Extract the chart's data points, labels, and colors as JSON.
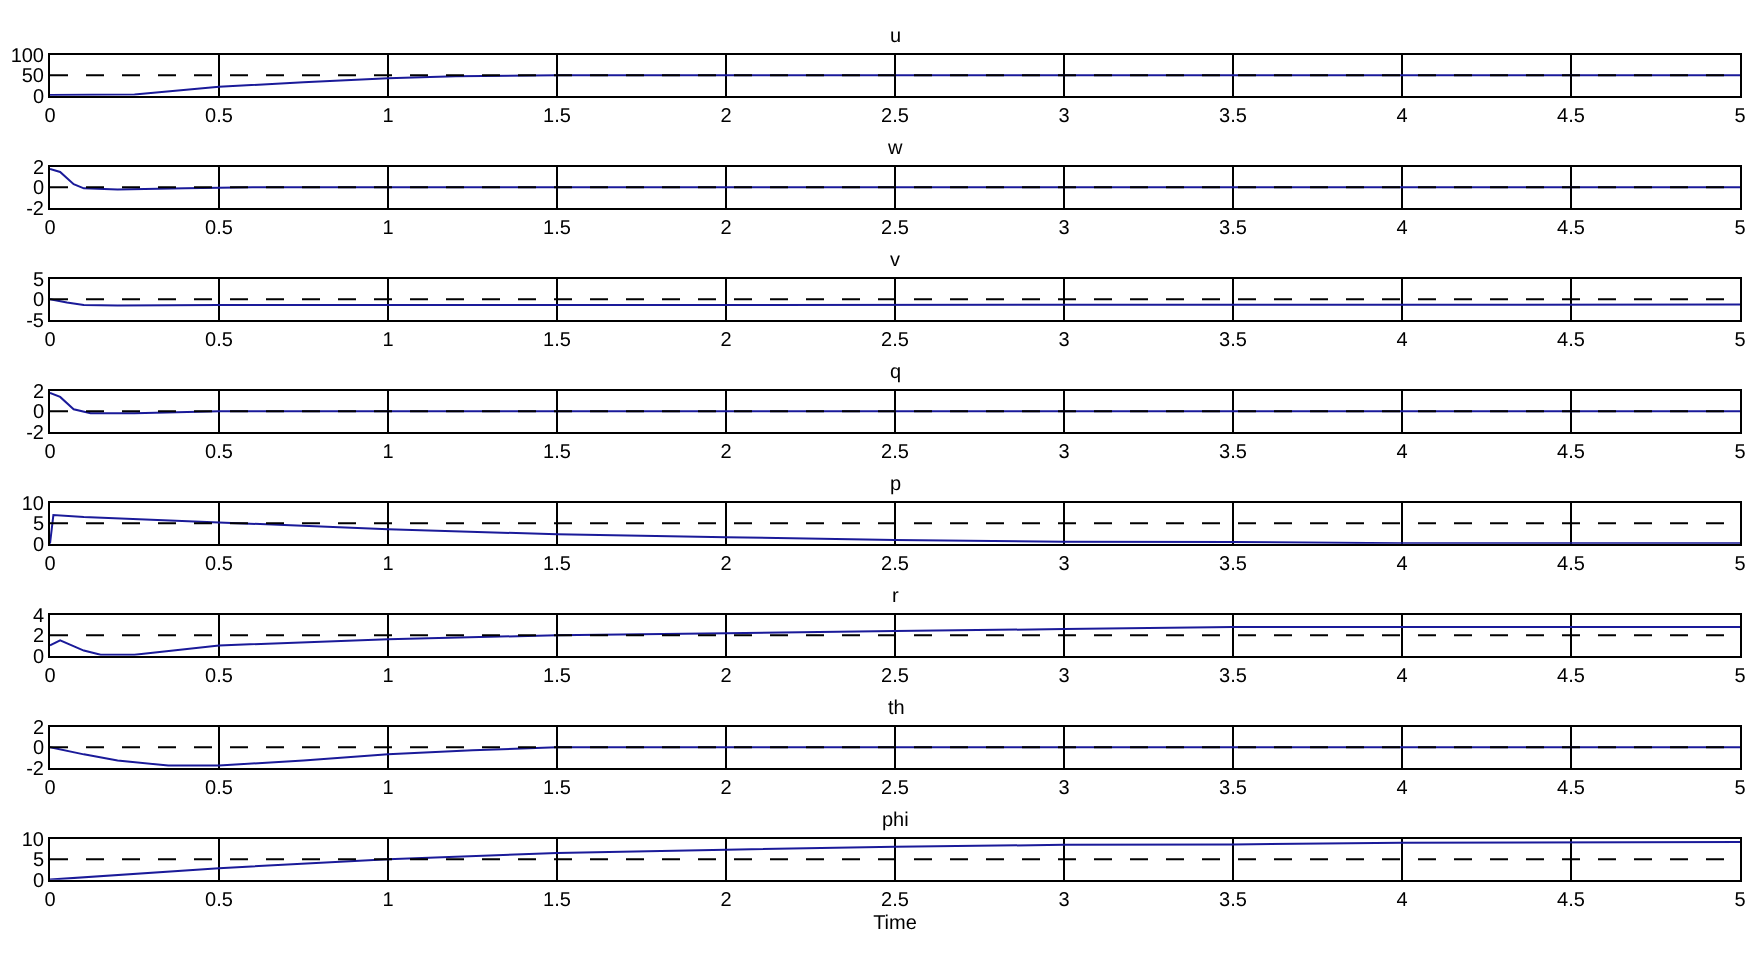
{
  "chart_data": [
    {
      "type": "line",
      "title": "u",
      "x": [
        0,
        0.25,
        0.5,
        0.75,
        1,
        1.2,
        1.5,
        5
      ],
      "series": [
        {
          "color": "#1a1a99",
          "values": [
            2,
            3,
            22,
            33,
            43,
            48,
            50,
            50
          ]
        }
      ],
      "xlim": [
        0,
        5
      ],
      "xticks": [
        0,
        0.5,
        1,
        1.5,
        2,
        2.5,
        3,
        3.5,
        4,
        4.5,
        5
      ],
      "ylim": [
        0,
        100
      ],
      "yticks": [
        0,
        50,
        100
      ],
      "ref_lines": [
        {
          "axis": "y",
          "value": 50,
          "color": "#000000",
          "line_style": "dashed"
        }
      ],
      "grid": "x"
    },
    {
      "type": "line",
      "title": "w",
      "x": [
        0,
        0.03,
        0.07,
        0.1,
        0.2,
        0.4,
        0.6,
        1,
        5
      ],
      "series": [
        {
          "color": "#1a1a99",
          "values": [
            1.8,
            1.5,
            0.3,
            -0.1,
            -0.2,
            -0.1,
            0,
            0,
            0
          ]
        }
      ],
      "xlim": [
        0,
        5
      ],
      "xticks": [
        0,
        0.5,
        1,
        1.5,
        2,
        2.5,
        3,
        3.5,
        4,
        4.5,
        5
      ],
      "ylim": [
        -2,
        2
      ],
      "yticks": [
        -2,
        0,
        2
      ],
      "ref_lines": [
        {
          "axis": "y",
          "value": 0,
          "color": "#000000",
          "line_style": "dashed"
        }
      ],
      "grid": "x"
    },
    {
      "type": "line",
      "title": "v",
      "x": [
        0,
        0.05,
        0.1,
        0.2,
        0.5,
        5
      ],
      "series": [
        {
          "color": "#1a1a99",
          "values": [
            0,
            -0.8,
            -1.4,
            -1.5,
            -1.4,
            -1.3
          ]
        }
      ],
      "xlim": [
        0,
        5
      ],
      "xticks": [
        0,
        0.5,
        1,
        1.5,
        2,
        2.5,
        3,
        3.5,
        4,
        4.5,
        5
      ],
      "ylim": [
        -5,
        5
      ],
      "yticks": [
        -5,
        0,
        5
      ],
      "ref_lines": [
        {
          "axis": "y",
          "value": 0,
          "color": "#000000",
          "line_style": "dashed"
        }
      ],
      "grid": "x"
    },
    {
      "type": "line",
      "title": "q",
      "x": [
        0,
        0.03,
        0.07,
        0.12,
        0.25,
        0.5,
        1,
        5
      ],
      "series": [
        {
          "color": "#1a1a99",
          "values": [
            1.8,
            1.4,
            0.2,
            -0.2,
            -0.2,
            0,
            0,
            0
          ]
        }
      ],
      "xlim": [
        0,
        5
      ],
      "xticks": [
        0,
        0.5,
        1,
        1.5,
        2,
        2.5,
        3,
        3.5,
        4,
        4.5,
        5
      ],
      "ylim": [
        -2,
        2
      ],
      "yticks": [
        -2,
        0,
        2
      ],
      "ref_lines": [
        {
          "axis": "y",
          "value": 0,
          "color": "#000000",
          "line_style": "dashed"
        }
      ],
      "grid": "x"
    },
    {
      "type": "line",
      "title": "p",
      "x": [
        0,
        0.01,
        0.1,
        0.5,
        1,
        1.5,
        2,
        2.5,
        3,
        3.5,
        4,
        5
      ],
      "series": [
        {
          "color": "#1a1a99",
          "values": [
            0,
            7,
            6.5,
            5.2,
            3.5,
            2.3,
            1.6,
            0.9,
            0.5,
            0.4,
            0.1,
            0.1
          ]
        }
      ],
      "xlim": [
        0,
        5
      ],
      "xticks": [
        0,
        0.5,
        1,
        1.5,
        2,
        2.5,
        3,
        3.5,
        4,
        4.5,
        5
      ],
      "ylim": [
        0,
        10
      ],
      "yticks": [
        0,
        5,
        10
      ],
      "ref_lines": [
        {
          "axis": "y",
          "value": 5,
          "color": "#000000",
          "line_style": "dashed"
        }
      ],
      "grid": "x"
    },
    {
      "type": "line",
      "title": "r",
      "x": [
        0,
        0.03,
        0.1,
        0.15,
        0.25,
        0.5,
        1,
        1.5,
        2,
        2.5,
        3,
        3.5,
        5
      ],
      "series": [
        {
          "color": "#1a1a99",
          "values": [
            1.0,
            1.5,
            0.5,
            0.1,
            0.1,
            1.0,
            1.6,
            2.0,
            2.2,
            2.4,
            2.6,
            2.8,
            2.8
          ]
        }
      ],
      "xlim": [
        0,
        5
      ],
      "xticks": [
        0,
        0.5,
        1,
        1.5,
        2,
        2.5,
        3,
        3.5,
        4,
        4.5,
        5
      ],
      "ylim": [
        0,
        4
      ],
      "yticks": [
        0,
        2,
        4
      ],
      "ref_lines": [
        {
          "axis": "y",
          "value": 2,
          "color": "#000000",
          "line_style": "dashed"
        }
      ],
      "grid": "x"
    },
    {
      "type": "line",
      "title": "th",
      "x": [
        0,
        0.1,
        0.2,
        0.35,
        0.5,
        0.75,
        1,
        1.25,
        1.5,
        5
      ],
      "series": [
        {
          "color": "#1a1a99",
          "values": [
            0,
            -0.7,
            -1.3,
            -1.8,
            -1.8,
            -1.3,
            -0.7,
            -0.3,
            0,
            0
          ]
        }
      ],
      "xlim": [
        0,
        5
      ],
      "xticks": [
        0,
        0.5,
        1,
        1.5,
        2,
        2.5,
        3,
        3.5,
        4,
        4.5,
        5
      ],
      "ylim": [
        -2,
        2
      ],
      "yticks": [
        -2,
        0,
        2
      ],
      "ref_lines": [
        {
          "axis": "y",
          "value": 0,
          "color": "#000000",
          "line_style": "dashed"
        }
      ],
      "grid": "x"
    },
    {
      "type": "line",
      "title": "phi",
      "xlabel": "Time",
      "x": [
        0,
        0.5,
        1,
        1.5,
        2,
        2.5,
        3,
        3.5,
        4,
        5
      ],
      "series": [
        {
          "color": "#1a1a99",
          "values": [
            0,
            2.8,
            5,
            6.5,
            7.3,
            8,
            8.5,
            8.6,
            9,
            9.2
          ]
        }
      ],
      "xlim": [
        0,
        5
      ],
      "xticks": [
        0,
        0.5,
        1,
        1.5,
        2,
        2.5,
        3,
        3.5,
        4,
        4.5,
        5
      ],
      "ylim": [
        0,
        10
      ],
      "yticks": [
        0,
        5,
        10
      ],
      "ref_lines": [
        {
          "axis": "y",
          "value": 5,
          "color": "#000000",
          "line_style": "dashed"
        }
      ],
      "grid": "x"
    }
  ]
}
